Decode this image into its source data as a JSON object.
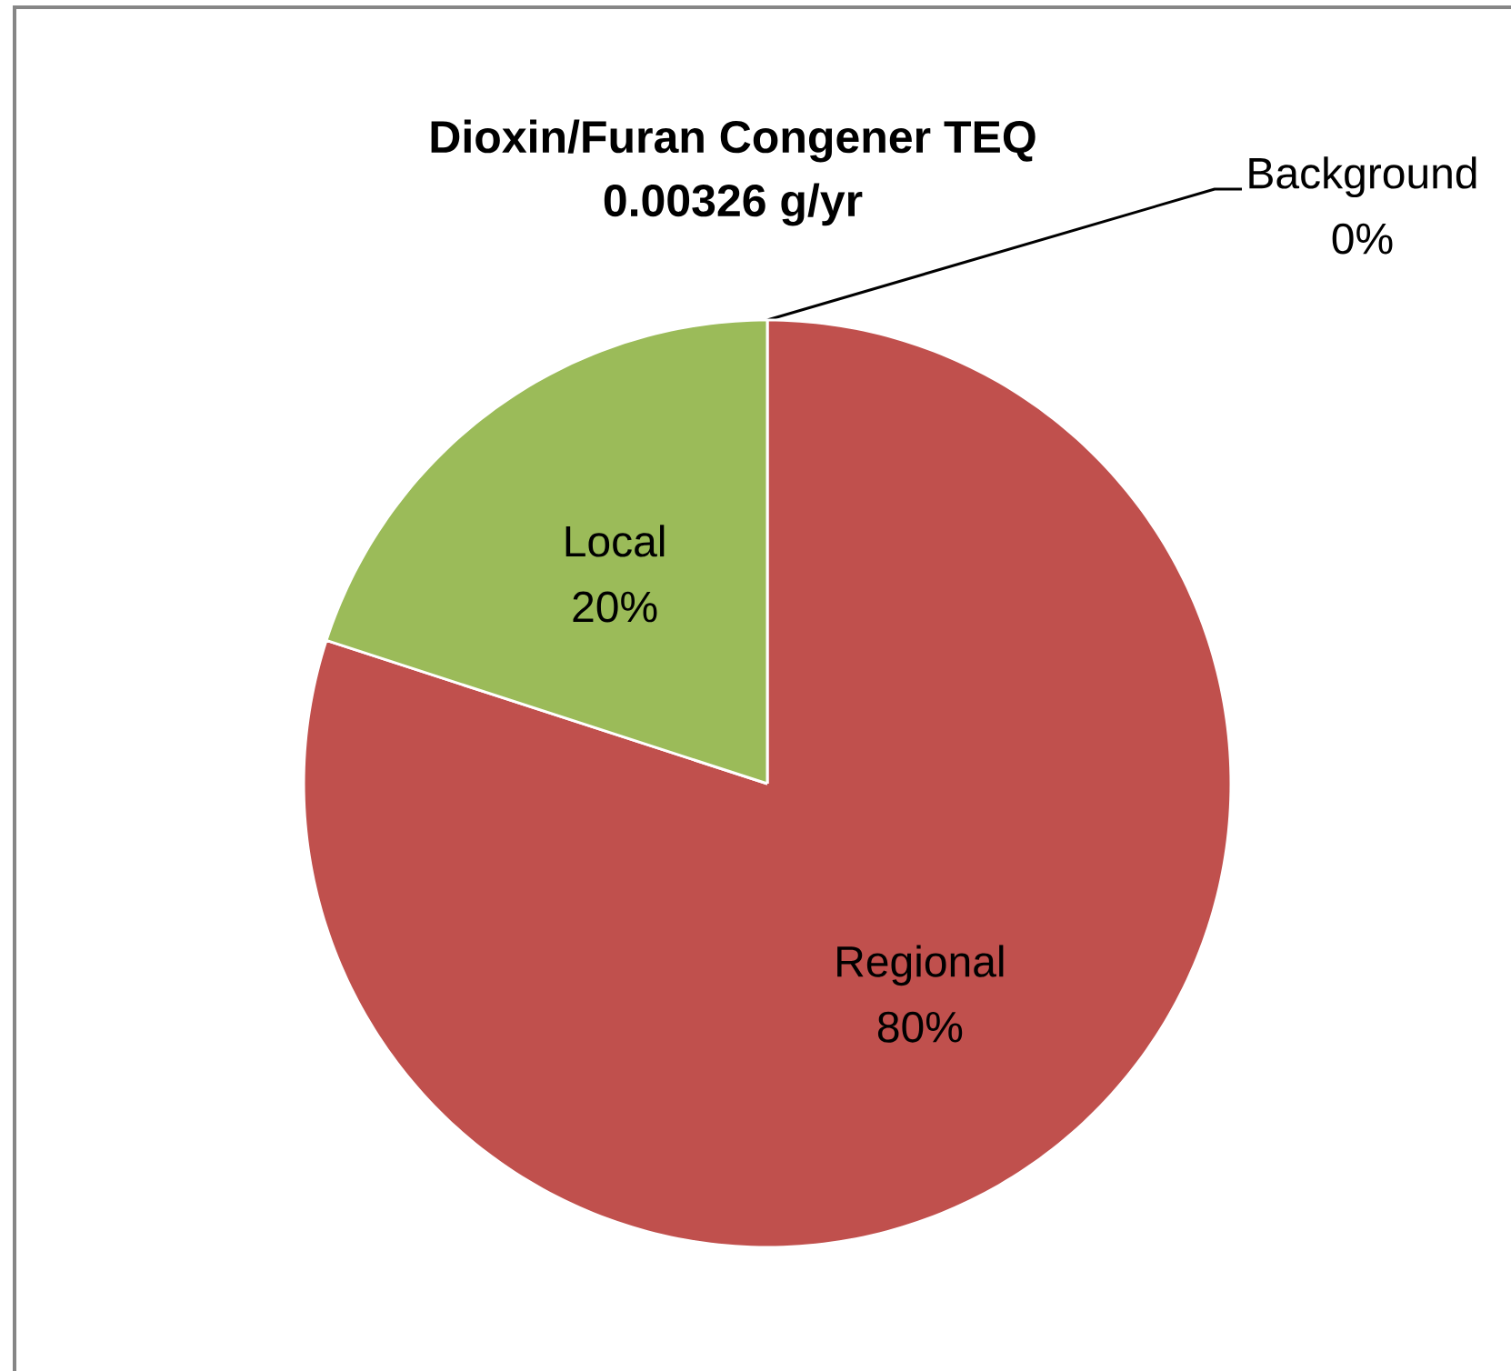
{
  "chart_data": {
    "type": "pie",
    "title": "Dioxin/Furan Congener TEQ",
    "subtitle": "0.00326 g/yr",
    "categories": [
      "Background",
      "Regional",
      "Local"
    ],
    "values": [
      0,
      80,
      20
    ],
    "value_labels": [
      "0%",
      "80%",
      "20%"
    ],
    "colors": [
      null,
      "#c0504d",
      "#9bbb59"
    ]
  }
}
